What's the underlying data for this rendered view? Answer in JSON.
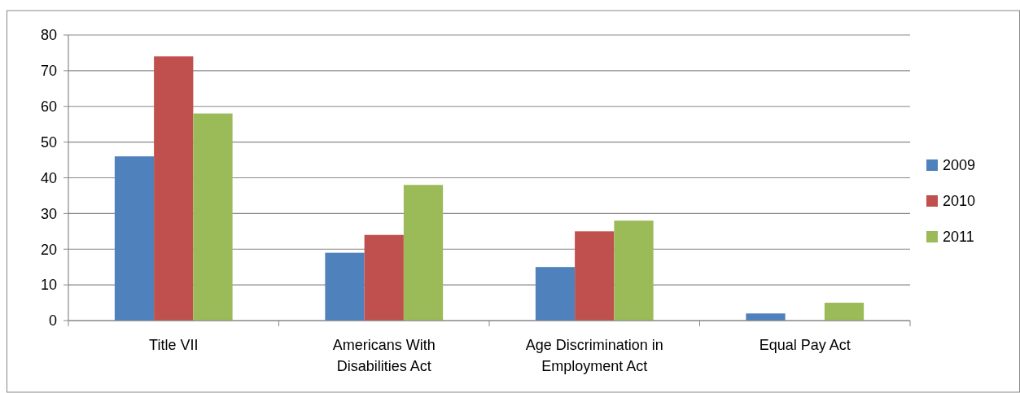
{
  "chart_data": {
    "type": "bar",
    "categories": [
      "Title VII",
      "Americans With Disabilities Act",
      "Age Discrimination in Employment Act",
      "Equal Pay Act"
    ],
    "series": [
      {
        "name": "2009",
        "color": "#4f81bd",
        "values": [
          46,
          19,
          15,
          2
        ]
      },
      {
        "name": "2010",
        "color": "#c0504d",
        "values": [
          74,
          24,
          25,
          0
        ]
      },
      {
        "name": "2011",
        "color": "#9bbb59",
        "values": [
          58,
          38,
          28,
          5
        ]
      }
    ],
    "ylim": [
      0,
      80
    ],
    "yticks": [
      0,
      10,
      20,
      30,
      40,
      50,
      60,
      70,
      80
    ],
    "grid": "y",
    "legend": "right"
  }
}
